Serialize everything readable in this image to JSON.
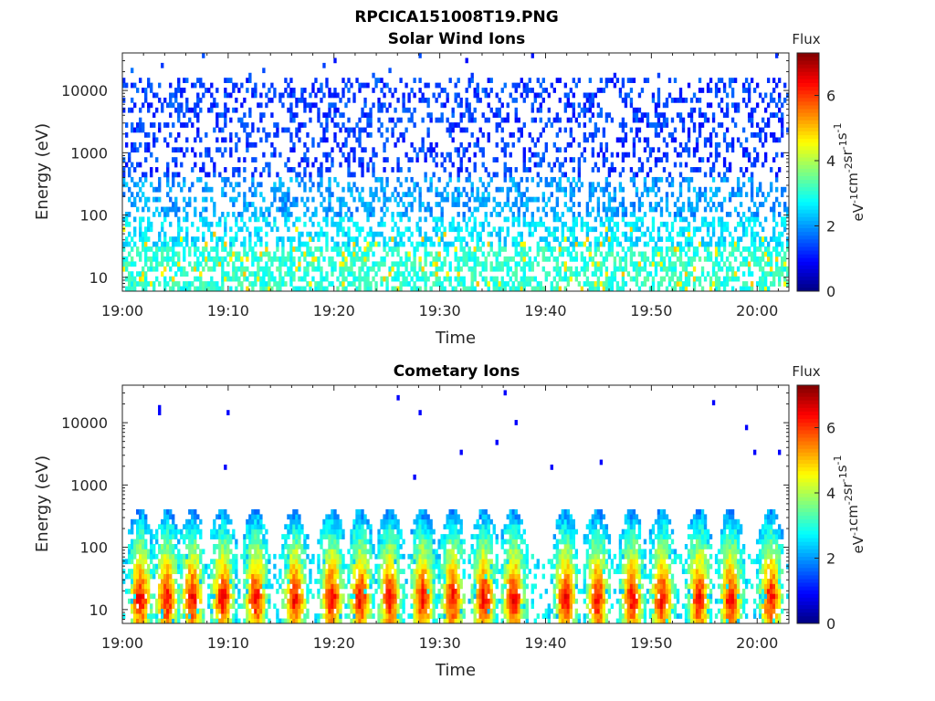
{
  "figure": {
    "title": "RPCICA151008T19.PNG"
  },
  "chart_data": [
    {
      "type": "heatmap",
      "title": "Solar Wind Ions",
      "xlabel": "Time",
      "ylabel": "Energy (eV)",
      "x_tick_labels": [
        "19:00",
        "19:10",
        "19:20",
        "19:30",
        "19:40",
        "19:50",
        "20:00"
      ],
      "x_tick_minutes": [
        0,
        10,
        20,
        30,
        40,
        50,
        60
      ],
      "xlim_minutes": [
        0,
        63
      ],
      "y_scale": "log",
      "y_tick_labels": [
        "10",
        "100",
        "1000",
        "10000"
      ],
      "y_tick_values": [
        10,
        100,
        1000,
        10000
      ],
      "ylim": [
        6,
        40000
      ],
      "colorbar": {
        "title": "Flux",
        "label_base": [
          "eV",
          "cm",
          "sr",
          "s"
        ],
        "label_exp": [
          "-1",
          "-2",
          "-1",
          "-1"
        ],
        "range": [
          0,
          7.3
        ],
        "tick_labels": [
          "0",
          "2",
          "4",
          "6"
        ],
        "tick_values": [
          0,
          2,
          4,
          6
        ],
        "colormap": "jet"
      },
      "flux_profile": [
        {
          "energy": 10,
          "flux": 3.2
        },
        {
          "energy": 30,
          "flux": 3.0
        },
        {
          "energy": 100,
          "flux": 2.4
        },
        {
          "energy": 300,
          "flux": 1.9
        },
        {
          "energy": 1000,
          "flux": 1.5
        },
        {
          "energy": 10000,
          "flux": 1.2
        }
      ]
    },
    {
      "type": "heatmap",
      "title": "Cometary Ions",
      "xlabel": "Time",
      "ylabel": "Energy (eV)",
      "x_tick_labels": [
        "19:00",
        "19:10",
        "19:20",
        "19:30",
        "19:40",
        "19:50",
        "20:00"
      ],
      "x_tick_minutes": [
        0,
        10,
        20,
        30,
        40,
        50,
        60
      ],
      "xlim_minutes": [
        0,
        63
      ],
      "y_scale": "log",
      "y_tick_labels": [
        "10",
        "100",
        "1000",
        "10000"
      ],
      "y_tick_values": [
        10,
        100,
        1000,
        10000
      ],
      "ylim": [
        6,
        40000
      ],
      "colorbar": {
        "title": "Flux",
        "label_base": [
          "eV",
          "cm",
          "sr",
          "s"
        ],
        "label_exp": [
          "-1",
          "-2",
          "-1",
          "-1"
        ],
        "range": [
          0,
          7.3
        ],
        "tick_labels": [
          "0",
          "2",
          "4",
          "6"
        ],
        "tick_values": [
          0,
          2,
          4,
          6
        ],
        "colormap": "jet"
      },
      "burst_minutes": [
        1.7,
        4.2,
        6.6,
        9.5,
        12.6,
        16.3,
        19.8,
        22.5,
        25.3,
        28.4,
        31.2,
        34.2,
        37.0,
        41.9,
        44.9,
        48.2,
        51.0,
        54.5,
        57.5,
        61.3
      ],
      "peak_flux": 6.5,
      "peak_energy": 15
    }
  ]
}
